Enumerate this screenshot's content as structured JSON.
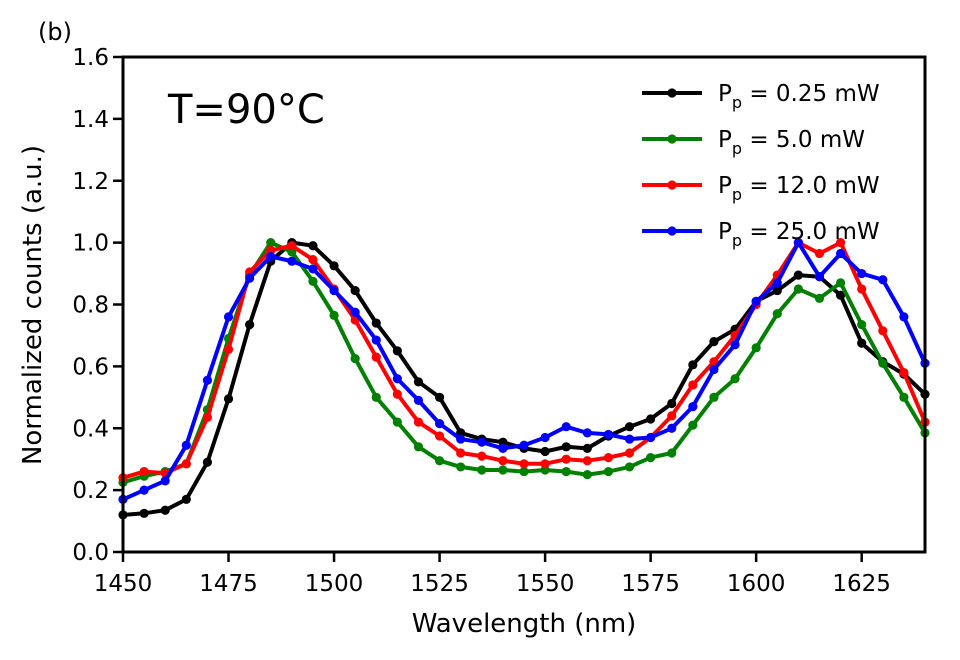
{
  "panel_label": "(b)",
  "chart_data": {
    "type": "line",
    "annotation": "T=90°C",
    "xlabel": "Wavelength (nm)",
    "ylabel": "Normalized counts (a.u.)",
    "xlim": [
      1450,
      1640
    ],
    "ylim": [
      0.0,
      1.6
    ],
    "xticks": [
      1450,
      1475,
      1500,
      1525,
      1550,
      1575,
      1600,
      1625
    ],
    "yticks": [
      "0.0",
      "0.2",
      "0.4",
      "0.6",
      "0.8",
      "1.0",
      "1.2",
      "1.4",
      "1.6"
    ],
    "legend_position": "top-right",
    "x": [
      1450,
      1455,
      1460,
      1465,
      1470,
      1475,
      1480,
      1485,
      1490,
      1495,
      1500,
      1505,
      1510,
      1515,
      1520,
      1525,
      1530,
      1535,
      1540,
      1545,
      1550,
      1555,
      1560,
      1565,
      1570,
      1575,
      1580,
      1585,
      1590,
      1595,
      1600,
      1605,
      1610,
      1615,
      1620,
      1625,
      1630,
      1635,
      1640
    ],
    "series": [
      {
        "name_main": "P",
        "name_sub": "p",
        "name_rest": " = 0.25 mW",
        "color": "#000000",
        "values": [
          0.12,
          0.125,
          0.135,
          0.17,
          0.29,
          0.495,
          0.735,
          0.94,
          1.0,
          0.99,
          0.925,
          0.845,
          0.74,
          0.65,
          0.55,
          0.5,
          0.385,
          0.365,
          0.355,
          0.335,
          0.325,
          0.34,
          0.335,
          0.375,
          0.405,
          0.43,
          0.48,
          0.605,
          0.68,
          0.72,
          0.81,
          0.845,
          0.895,
          0.89,
          0.83,
          0.675,
          0.615,
          0.575,
          0.51
        ]
      },
      {
        "name_main": "P",
        "name_sub": "p",
        "name_rest": " = 5.0 mW",
        "color": "#008000",
        "values": [
          0.225,
          0.245,
          0.26,
          0.285,
          0.46,
          0.69,
          0.895,
          1.0,
          0.97,
          0.875,
          0.765,
          0.625,
          0.5,
          0.42,
          0.34,
          0.295,
          0.275,
          0.265,
          0.265,
          0.26,
          0.265,
          0.26,
          0.25,
          0.26,
          0.275,
          0.305,
          0.32,
          0.41,
          0.5,
          0.56,
          0.66,
          0.77,
          0.85,
          0.82,
          0.87,
          0.735,
          0.61,
          0.5,
          0.385
        ]
      },
      {
        "name_main": "P",
        "name_sub": "p",
        "name_rest": " = 12.0 mW",
        "color": "#ff0000",
        "values": [
          0.24,
          0.26,
          0.255,
          0.285,
          0.435,
          0.655,
          0.905,
          0.975,
          0.99,
          0.945,
          0.85,
          0.75,
          0.63,
          0.51,
          0.42,
          0.375,
          0.32,
          0.31,
          0.295,
          0.285,
          0.285,
          0.3,
          0.295,
          0.305,
          0.32,
          0.37,
          0.44,
          0.54,
          0.615,
          0.7,
          0.8,
          0.895,
          1.0,
          0.965,
          1.0,
          0.85,
          0.715,
          0.58,
          0.42
        ]
      },
      {
        "name_main": "P",
        "name_sub": "p",
        "name_rest": " = 25.0 mW",
        "color": "#0000ff",
        "values": [
          0.17,
          0.2,
          0.23,
          0.345,
          0.555,
          0.76,
          0.885,
          0.955,
          0.94,
          0.915,
          0.845,
          0.775,
          0.685,
          0.56,
          0.49,
          0.415,
          0.365,
          0.355,
          0.335,
          0.345,
          0.37,
          0.405,
          0.385,
          0.38,
          0.365,
          0.37,
          0.4,
          0.47,
          0.59,
          0.67,
          0.81,
          0.87,
          1.0,
          0.89,
          0.965,
          0.9,
          0.88,
          0.76,
          0.61
        ]
      }
    ]
  }
}
